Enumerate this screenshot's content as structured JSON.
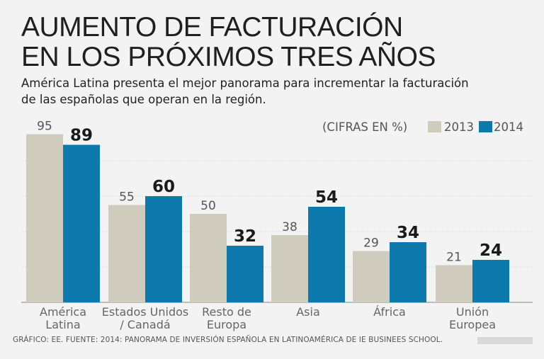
{
  "header": {
    "title_line1": "AUMENTO DE FACTURACIÓN",
    "title_line2": "EN LOS PRÓXIMOS TRES AÑOS",
    "subtitle_line1": "América Latina presenta el mejor panorama para incrementar la facturación",
    "subtitle_line2": "de las españolas que operan en la región."
  },
  "legend": {
    "units": "(CIFRAS EN  %)",
    "label_2013": "2013",
    "label_2014": "2014"
  },
  "colors": {
    "series_2013": "#cfcbbd",
    "series_2014": "#0d79ad",
    "background": "#f3f3f3"
  },
  "source": "GRÁFICO: EE. FUENTE: 2014: PANORAMA DE INVERSIÓN ESPAÑOLA EN LATINOAMÉRICA DE IE BUSINEES SCHOOL.",
  "chart_data": {
    "type": "bar",
    "title": "AUMENTO DE FACTURACIÓN EN LOS PRÓXIMOS TRES AÑOS",
    "ylabel": "%",
    "ylim": [
      0,
      100
    ],
    "grid": true,
    "legend_position": "top-right",
    "categories": [
      [
        "América",
        "Latina"
      ],
      [
        "Estados Unidos",
        "/ Canadá"
      ],
      [
        "Resto de",
        "Europa"
      ],
      [
        "Asia"
      ],
      [
        "África"
      ],
      [
        "Unión",
        "Europea"
      ]
    ],
    "series": [
      {
        "name": "2013",
        "values": [
          95,
          55,
          50,
          38,
          29,
          21
        ]
      },
      {
        "name": "2014",
        "values": [
          89,
          60,
          32,
          54,
          34,
          24
        ]
      }
    ]
  }
}
